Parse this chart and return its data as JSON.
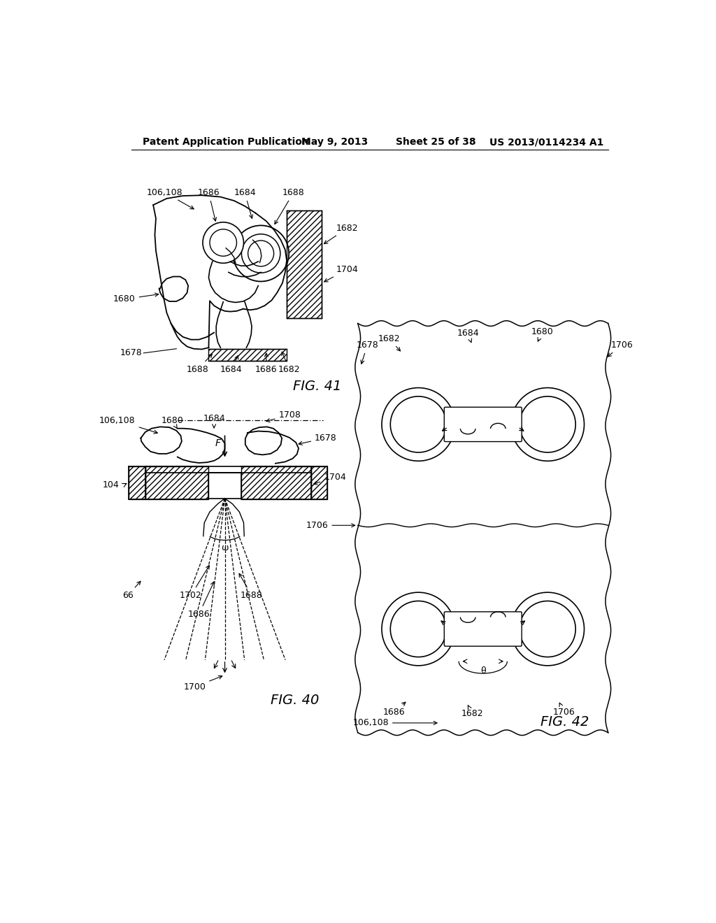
{
  "title_left": "Patent Application Publication",
  "title_mid": "May 9, 2013",
  "title_right_1": "Sheet 25 of 38",
  "title_right_2": "US 2013/0114234 A1",
  "fig40_label": "FIG. 40",
  "fig41_label": "FIG. 41",
  "fig42_label": "FIG. 42",
  "bg_color": "#ffffff",
  "line_color": "#000000",
  "text_color": "#000000",
  "fig_label_fontsize": 14,
  "header_fontsize": 10,
  "annotation_fontsize": 9
}
